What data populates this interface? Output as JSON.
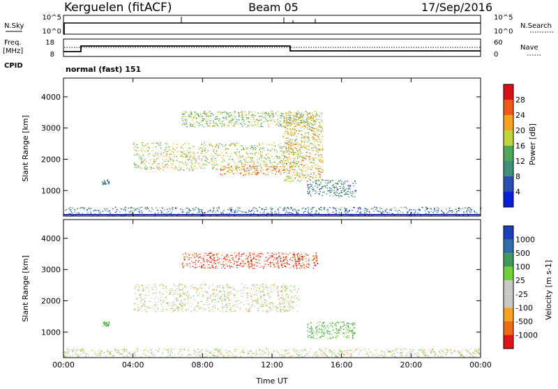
{
  "header": {
    "station": "Kerguelen (fitACF)",
    "beam": "Beam 05",
    "date": "17/Sep/2016"
  },
  "time_axis": {
    "label": "Time UT",
    "ticks": [
      "00:00",
      "04:00",
      "08:00",
      "12:00",
      "16:00",
      "20:00",
      "00:00"
    ],
    "range_hours": [
      0,
      24
    ]
  },
  "noise_panel": {
    "left_label": "N.Sky",
    "right_label": "N.Search",
    "left_ticks": [
      "10^5",
      "10^0"
    ],
    "right_ticks": [
      "10^5",
      "10^0"
    ]
  },
  "freq_panel": {
    "left_label": "Freq.",
    "left_unit": "[MHz]",
    "left_ticks": [
      "18",
      "8"
    ],
    "right_label": "Nave",
    "right_ticks": [
      "60",
      "0"
    ],
    "cpid_label": "CPID",
    "mode_text": "normal (fast) 151"
  },
  "chart_data": [
    {
      "type": "heatmap",
      "panel": "power",
      "ylabel": "Slant Range [km]",
      "yticks": [
        1000,
        2000,
        3000,
        4000
      ],
      "ylim": [
        180,
        4600
      ],
      "colorbar_label": "Power [dB]",
      "colorbar_ticks": [
        "4",
        "8",
        "12",
        "16",
        "20",
        "24",
        "28"
      ],
      "colorbar_colors": [
        "#0a1fd9",
        "#2a4fb0",
        "#3f8f7a",
        "#4fa85a",
        "#c2d63a",
        "#f5a21e",
        "#ef5b17",
        "#d9101a"
      ],
      "regions": [
        {
          "t0": 6.8,
          "t1": 14.6,
          "r0": 3050,
          "r1": 3550,
          "level": 16
        },
        {
          "t0": 4.0,
          "t1": 13.5,
          "r0": 1650,
          "r1": 2550,
          "level": 18
        },
        {
          "t0": 9.0,
          "t1": 12.5,
          "r0": 1500,
          "r1": 1800,
          "level": 24
        },
        {
          "t0": 12.6,
          "t1": 14.9,
          "r0": 1300,
          "r1": 3500,
          "level": 20
        },
        {
          "t0": 14.0,
          "t1": 16.8,
          "r0": 800,
          "r1": 1350,
          "level": 10
        },
        {
          "t0": 2.2,
          "t1": 2.6,
          "r0": 1200,
          "r1": 1350,
          "level": 8
        },
        {
          "t0": 0.0,
          "t1": 24.0,
          "r0": 200,
          "r1": 480,
          "level": 8
        }
      ]
    },
    {
      "type": "heatmap",
      "panel": "velocity",
      "ylabel": "Slant Range [km]",
      "yticks": [
        1000,
        2000,
        3000,
        4000
      ],
      "ylim": [
        180,
        4600
      ],
      "colorbar_label": "Velocity [m s-1]",
      "colorbar_ticks": [
        "1000",
        "500",
        "100",
        "25",
        "-25",
        "-100",
        "-500",
        "-1000"
      ],
      "colorbar_colors": [
        "#1d3fb8",
        "#2f6eaa",
        "#3f9a5a",
        "#6fd03a",
        "#c9c9c4",
        "#c9c9c4",
        "#f5a21e",
        "#ef6a17",
        "#e01515"
      ],
      "regions": [
        {
          "t0": 6.8,
          "t1": 14.6,
          "r0": 3050,
          "r1": 3550,
          "level": -500
        },
        {
          "t0": 4.0,
          "t1": 13.5,
          "r0": 1650,
          "r1": 2550,
          "level": 0
        },
        {
          "t0": 14.0,
          "t1": 16.8,
          "r0": 800,
          "r1": 1350,
          "level": 100
        },
        {
          "t0": 2.2,
          "t1": 2.6,
          "r0": 1200,
          "r1": 1350,
          "level": 100
        },
        {
          "t0": 0.0,
          "t1": 24.0,
          "r0": 200,
          "r1": 480,
          "level": 0
        }
      ]
    }
  ]
}
